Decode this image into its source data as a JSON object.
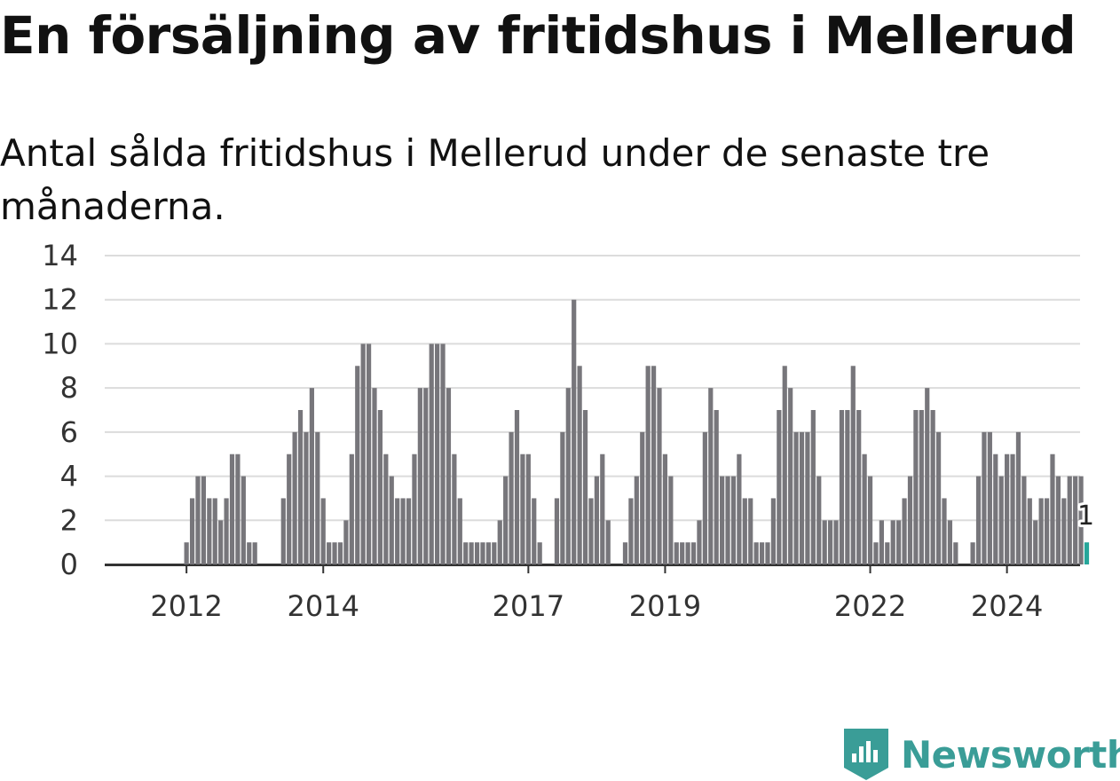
{
  "title": "En försäljning av fritidshus i Mellerud",
  "subtitle": "Antal sålda fritidshus i Mellerud under de senaste tre månaderna.",
  "brand": {
    "name": "Newsworthy",
    "color": "#3a9d97",
    "icon": "newsworthy-logo-icon"
  },
  "chart_data": {
    "type": "bar",
    "title": "En försäljning av fritidshus i Mellerud",
    "subtitle": "Antal sålda fritidshus i Mellerud under de senaste tre månaderna.",
    "xlabel": "",
    "ylabel": "",
    "ylim": [
      0,
      14
    ],
    "yticks": [
      0,
      2,
      4,
      6,
      8,
      10,
      12,
      14
    ],
    "grid": true,
    "bar_color": "#77767b",
    "highlight_color": "#26a69a",
    "x_start": "2011-06",
    "x_tick_labels": [
      {
        "label": "2012",
        "date": "2012-01"
      },
      {
        "label": "2014",
        "date": "2014-01"
      },
      {
        "label": "2017",
        "date": "2017-01"
      },
      {
        "label": "2019",
        "date": "2019-01"
      },
      {
        "label": "2022",
        "date": "2022-01"
      },
      {
        "label": "2024",
        "date": "2024-01"
      }
    ],
    "values": [
      0,
      0,
      0,
      0,
      0,
      0,
      0,
      1,
      3,
      4,
      4,
      3,
      3,
      2,
      3,
      5,
      5,
      4,
      1,
      1,
      0,
      0,
      0,
      0,
      3,
      5,
      6,
      7,
      6,
      8,
      6,
      3,
      1,
      1,
      1,
      2,
      5,
      9,
      10,
      10,
      8,
      7,
      5,
      4,
      3,
      3,
      3,
      5,
      8,
      8,
      10,
      10,
      10,
      8,
      5,
      3,
      1,
      1,
      1,
      1,
      1,
      1,
      2,
      4,
      6,
      7,
      5,
      5,
      3,
      1,
      0,
      0,
      3,
      6,
      8,
      12,
      9,
      7,
      3,
      4,
      5,
      2,
      0,
      0,
      1,
      3,
      4,
      6,
      9,
      9,
      8,
      5,
      4,
      1,
      1,
      1,
      1,
      2,
      6,
      8,
      7,
      4,
      4,
      4,
      5,
      3,
      3,
      1,
      1,
      1,
      3,
      7,
      9,
      8,
      6,
      6,
      6,
      7,
      4,
      2,
      2,
      2,
      7,
      7,
      9,
      7,
      5,
      4,
      1,
      2,
      1,
      2,
      2,
      3,
      4,
      7,
      7,
      8,
      7,
      6,
      3,
      2,
      1,
      0,
      0,
      1,
      4,
      6,
      6,
      5,
      4,
      5,
      5,
      6,
      4,
      3,
      2,
      3,
      3,
      5,
      4,
      3,
      4,
      4,
      4,
      1
    ],
    "highlight": {
      "index_last": true,
      "label": "1",
      "value": 1
    }
  }
}
